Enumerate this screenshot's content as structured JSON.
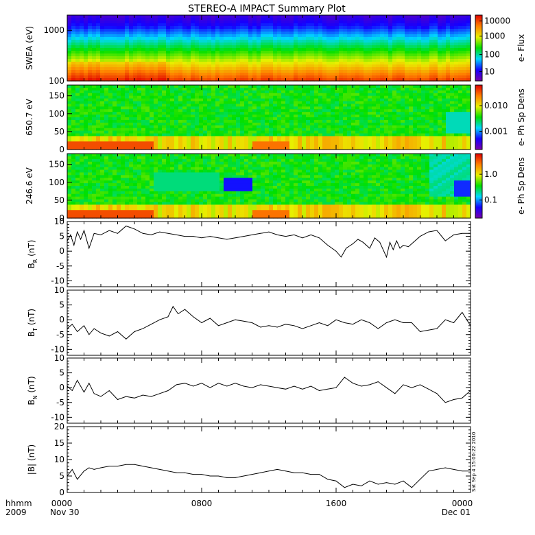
{
  "title": "STEREO-A IMPACT Summary Plot",
  "footer": {
    "left_top": "hhmm",
    "left_bottom": "2009",
    "date_start": "Nov 30",
    "date_end": "Dec 01",
    "x_ticks": [
      "0000",
      "0800",
      "1600",
      "0000"
    ]
  },
  "stamp": "Sat Sep  4 15:00:22 2010",
  "colors": {
    "line": "#000000",
    "scale": [
      "#7a00a8",
      "#1400ff",
      "#00d8ff",
      "#00e000",
      "#e8f000",
      "#ff8000",
      "#e00000"
    ]
  },
  "chart_data": [
    {
      "type": "heatmap",
      "ylabel": "SWEA (eV)",
      "y_scale": "log",
      "ylim": [
        100,
        2000
      ],
      "y_ticks": [
        "1000",
        "100"
      ],
      "colorbar_label": "e- Flux",
      "colorbar_ticks": [
        "10000",
        "1000",
        "100",
        "10"
      ],
      "colorbar_scale": "log",
      "colorbar_range": [
        3,
        15000
      ],
      "description_of_content": "Flux highest (red/orange) near 100-150 eV, falling through yellow and green to blue above ~1500 eV throughout Nov 30."
    },
    {
      "type": "heatmap",
      "ylabel": "650.7 eV",
      "ylim": [
        0,
        180
      ],
      "y_ticks": [
        "150",
        "100",
        "50",
        "0"
      ],
      "colorbar_label": "e- Ph Sp Dens",
      "colorbar_ticks": [
        "0.010",
        "0.001"
      ],
      "colorbar_scale": "log"
    },
    {
      "type": "heatmap",
      "ylabel": "246.6 eV",
      "ylim": [
        0,
        180
      ],
      "y_ticks": [
        "150",
        "100",
        "50",
        "0"
      ],
      "colorbar_label": "e- Ph Sp Dens",
      "colorbar_ticks": [
        "1.0",
        "0.1"
      ],
      "colorbar_scale": "log"
    },
    {
      "type": "line",
      "ylabel": "B",
      "ylabel_sub": "R",
      "yunit": "(nT)",
      "ylim": [
        -12,
        10
      ],
      "y_ticks": [
        "10",
        "5",
        "0",
        "-5",
        "-10"
      ],
      "x_hours": [
        0,
        0.2,
        0.4,
        0.6,
        0.8,
        1.0,
        1.3,
        1.6,
        2.0,
        2.5,
        3.0,
        3.5,
        4.0,
        4.5,
        5.0,
        5.5,
        6.0,
        6.5,
        7.0,
        7.5,
        8.0,
        8.5,
        9.0,
        9.5,
        10.0,
        10.5,
        11.0,
        11.5,
        12.0,
        12.5,
        13.0,
        13.5,
        14.0,
        14.5,
        15.0,
        15.5,
        16.0,
        16.3,
        16.6,
        17.0,
        17.3,
        17.6,
        18.0,
        18.3,
        18.6,
        19.0,
        19.2,
        19.4,
        19.6,
        19.8,
        20.0,
        20.3,
        20.6,
        21.0,
        21.5,
        22.0,
        22.5,
        23.0,
        23.5,
        24.0
      ],
      "values": [
        3.5,
        5.5,
        2.0,
        6.5,
        4.0,
        7.0,
        1.0,
        6.0,
        5.5,
        7.0,
        6.0,
        8.5,
        7.5,
        6.0,
        5.5,
        6.5,
        6.0,
        5.5,
        5.0,
        5.0,
        4.5,
        5.0,
        4.5,
        4.0,
        4.5,
        5.0,
        5.5,
        6.0,
        6.5,
        5.5,
        5.0,
        5.5,
        4.5,
        5.5,
        4.5,
        2.0,
        0.0,
        -2.0,
        1.0,
        2.5,
        4.0,
        3.0,
        1.0,
        4.5,
        3.0,
        -2.0,
        3.0,
        0.5,
        3.5,
        1.0,
        2.0,
        1.5,
        3.0,
        5.0,
        6.5,
        7.0,
        3.5,
        5.5,
        6.0,
        6.0
      ]
    },
    {
      "type": "line",
      "ylabel": "B",
      "ylabel_sub": "T",
      "yunit": "(nT)",
      "ylim": [
        -12,
        10
      ],
      "y_ticks": [
        "10",
        "5",
        "0",
        "-5",
        "-10"
      ],
      "x_hours": [
        0,
        0.3,
        0.6,
        1.0,
        1.3,
        1.6,
        2.0,
        2.5,
        3.0,
        3.5,
        4.0,
        4.5,
        5.0,
        5.5,
        6.0,
        6.3,
        6.6,
        7.0,
        7.5,
        8.0,
        8.5,
        9.0,
        9.5,
        10.0,
        10.5,
        11.0,
        11.5,
        12.0,
        12.5,
        13.0,
        13.5,
        14.0,
        14.5,
        15.0,
        15.5,
        16.0,
        16.5,
        17.0,
        17.5,
        18.0,
        18.5,
        19.0,
        19.5,
        20.0,
        20.5,
        21.0,
        21.5,
        22.0,
        22.5,
        23.0,
        23.5,
        24.0
      ],
      "values": [
        -3.0,
        -1.5,
        -4.0,
        -2.0,
        -5.0,
        -3.0,
        -4.5,
        -5.5,
        -4.0,
        -6.5,
        -4.0,
        -3.0,
        -1.5,
        0.0,
        1.0,
        4.5,
        2.0,
        3.5,
        1.0,
        -1.0,
        0.5,
        -2.0,
        -1.0,
        0.0,
        -0.5,
        -1.0,
        -2.5,
        -2.0,
        -2.5,
        -1.5,
        -2.0,
        -3.0,
        -2.0,
        -1.0,
        -2.0,
        0.0,
        -1.0,
        -1.5,
        0.0,
        -1.0,
        -3.0,
        -1.0,
        0.0,
        -1.0,
        -1.0,
        -4.0,
        -3.5,
        -3.0,
        0.0,
        -1.0,
        2.5,
        -2.0
      ]
    },
    {
      "type": "line",
      "ylabel": "B",
      "ylabel_sub": "N",
      "yunit": "(nT)",
      "ylim": [
        -12,
        10
      ],
      "y_ticks": [
        "10",
        "5",
        "0",
        "-5",
        "-10"
      ],
      "x_hours": [
        0,
        0.3,
        0.6,
        1.0,
        1.3,
        1.6,
        2.0,
        2.5,
        3.0,
        3.5,
        4.0,
        4.5,
        5.0,
        5.5,
        6.0,
        6.5,
        7.0,
        7.5,
        8.0,
        8.5,
        9.0,
        9.5,
        10.0,
        10.5,
        11.0,
        11.5,
        12.0,
        12.5,
        13.0,
        13.5,
        14.0,
        14.5,
        15.0,
        15.5,
        16.0,
        16.5,
        17.0,
        17.5,
        18.0,
        18.5,
        19.0,
        19.5,
        20.0,
        20.5,
        21.0,
        21.5,
        22.0,
        22.5,
        23.0,
        23.5,
        24.0
      ],
      "values": [
        0.5,
        -1.0,
        2.5,
        -1.5,
        1.5,
        -2.0,
        -3.0,
        -1.0,
        -4.0,
        -3.0,
        -3.5,
        -2.5,
        -3.0,
        -2.0,
        -1.0,
        1.0,
        1.5,
        0.5,
        1.5,
        0.0,
        1.5,
        0.5,
        1.5,
        0.5,
        0.0,
        1.0,
        0.5,
        0.0,
        -0.5,
        0.5,
        -0.5,
        0.5,
        -1.0,
        -0.5,
        0.0,
        3.5,
        1.5,
        0.5,
        1.0,
        2.0,
        0.0,
        -2.0,
        1.0,
        0.0,
        1.0,
        -0.5,
        -2.0,
        -5.0,
        -4.0,
        -3.5,
        -1.0
      ]
    },
    {
      "type": "line",
      "ylabel": "|B|",
      "yunit": "(nT)",
      "ylim": [
        0,
        20
      ],
      "y_ticks": [
        "20",
        "15",
        "10",
        "5",
        "0"
      ],
      "x_hours": [
        0,
        0.3,
        0.6,
        1.0,
        1.3,
        1.6,
        2.0,
        2.5,
        3.0,
        3.5,
        4.0,
        4.5,
        5.0,
        5.5,
        6.0,
        6.5,
        7.0,
        7.5,
        8.0,
        8.5,
        9.0,
        9.5,
        10.0,
        10.5,
        11.0,
        11.5,
        12.0,
        12.5,
        13.0,
        13.5,
        14.0,
        14.5,
        15.0,
        15.5,
        16.0,
        16.5,
        17.0,
        17.5,
        18.0,
        18.5,
        19.0,
        19.5,
        20.0,
        20.5,
        21.0,
        21.5,
        22.0,
        22.5,
        23.0,
        23.5,
        24.0
      ],
      "values": [
        5.0,
        7.0,
        4.0,
        6.5,
        7.5,
        7.0,
        7.5,
        8.0,
        8.0,
        8.5,
        8.5,
        8.0,
        7.5,
        7.0,
        6.5,
        6.0,
        6.0,
        5.5,
        5.5,
        5.0,
        5.0,
        4.5,
        4.5,
        5.0,
        5.5,
        6.0,
        6.5,
        7.0,
        6.5,
        6.0,
        6.0,
        5.5,
        5.5,
        4.0,
        3.5,
        1.5,
        2.5,
        2.0,
        3.5,
        2.5,
        3.0,
        2.5,
        3.5,
        1.5,
        4.0,
        6.5,
        7.0,
        7.5,
        7.0,
        6.5,
        6.5
      ]
    }
  ]
}
